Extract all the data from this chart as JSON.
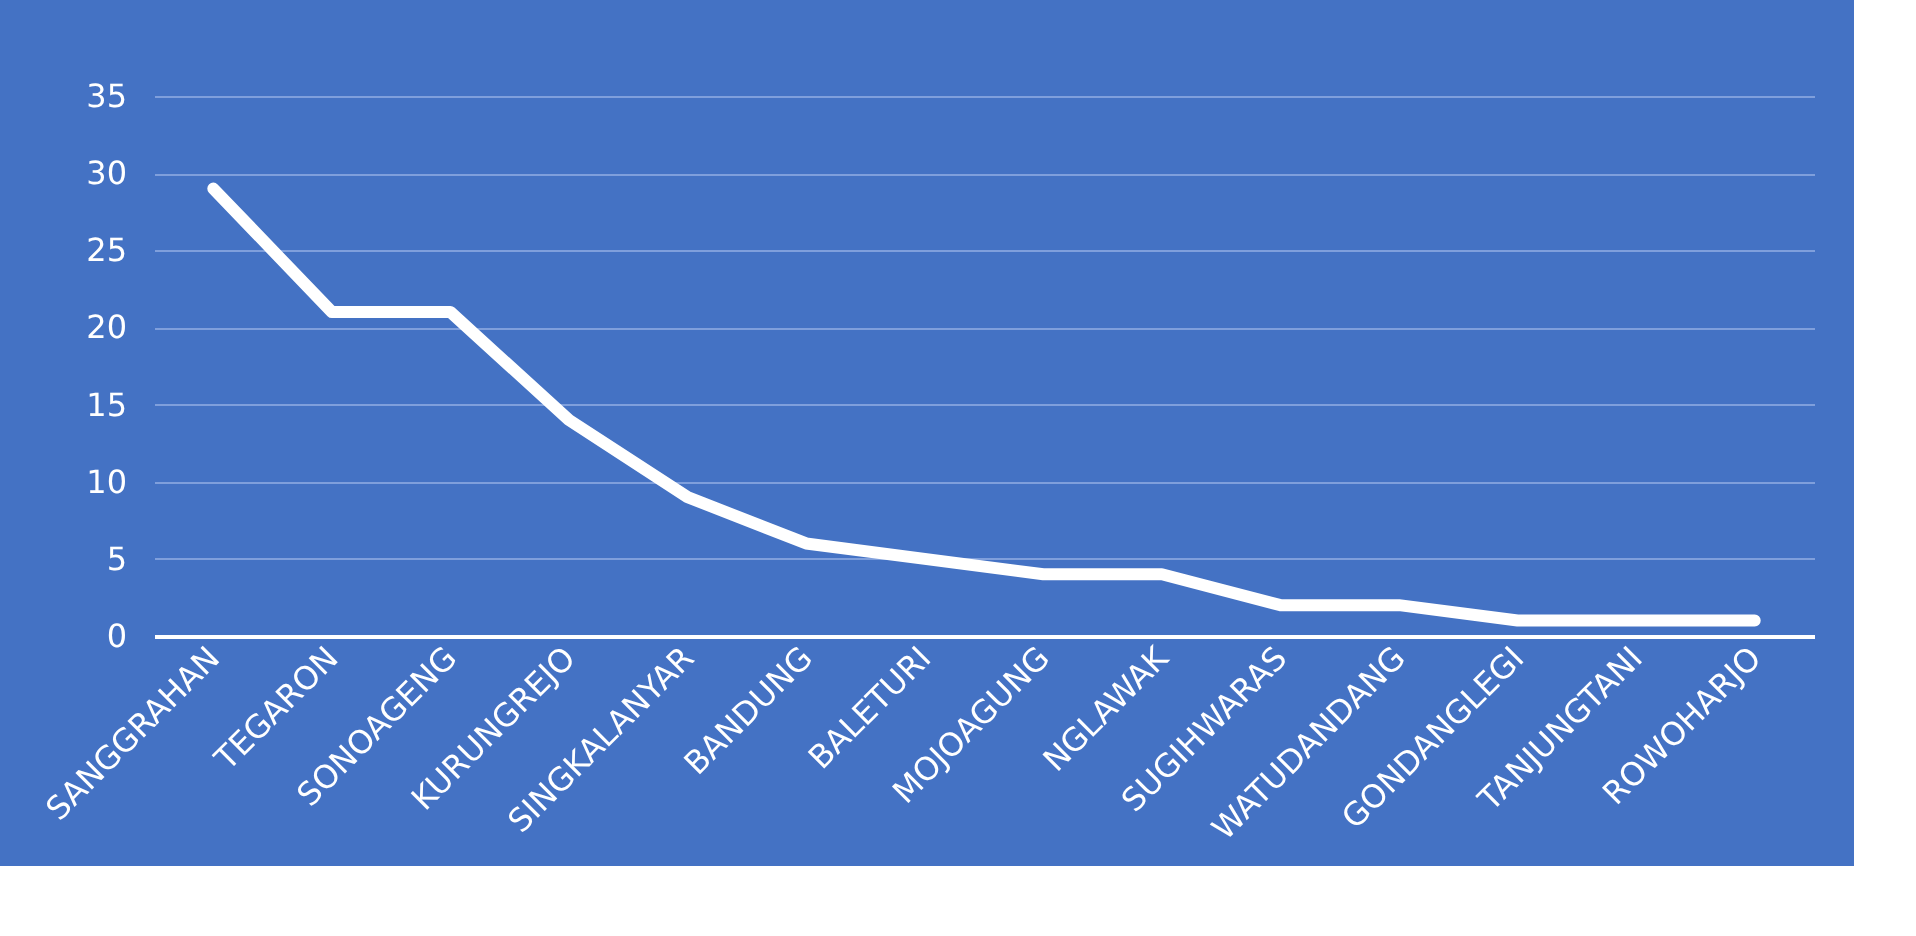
{
  "chart_data": {
    "type": "line",
    "categories": [
      "SANGGRAHAN",
      "TEGARON",
      "SONOAGENG",
      "KURUNGREJO",
      "SINGKALANYAR",
      "BANDUNG",
      "BALETURI",
      "MOJOAGUNG",
      "NGLAWAK",
      "SUGIHWARAS",
      "WATUDANDANG",
      "GONDANGLEGI",
      "TANJUNGTANI",
      "ROWOHARJO"
    ],
    "series": [
      {
        "color": "#ffffff",
        "values": [
          29,
          21,
          21,
          14,
          9,
          6,
          5,
          4,
          4,
          2,
          2,
          1,
          1,
          1
        ]
      }
    ],
    "ylim": [
      0,
      35
    ],
    "yticks": [
      0,
      5,
      10,
      15,
      20,
      25,
      30,
      35
    ],
    "grid": "y",
    "legend": false,
    "marker": "none",
    "line_style": "solid"
  }
}
